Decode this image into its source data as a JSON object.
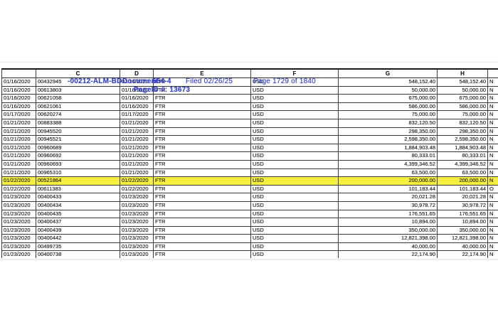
{
  "stamp": {
    "color": "#3240d4",
    "case_number_fragment": "-00212-ALM-BD",
    "document_label": "Document",
    "document_number": "554-4",
    "filed": "Filed 02/26/25",
    "page_info": "Page 1729 of 1840",
    "pageid": "PageID #: 13673"
  },
  "table": {
    "highlight_color": "#f7ef3f",
    "column_headers": [
      "",
      "C",
      "D",
      "E",
      "F",
      "G",
      "H",
      ""
    ],
    "rows": [
      {
        "date": "01/16/2020",
        "id": "00432945",
        "value_date": "01/16/2020",
        "type": "FTR",
        "currency": "USD",
        "amount": "548,152.40",
        "amount2": "548,152.40",
        "flag": "N",
        "highlighted": false
      },
      {
        "date": "01/16/2020",
        "id": "00613803",
        "value_date": "01/16/2020",
        "type": "FTR",
        "currency": "USD",
        "amount": "50,000.00",
        "amount2": "50,000.00",
        "flag": "N",
        "highlighted": false
      },
      {
        "date": "01/16/2020",
        "id": "00621058",
        "value_date": "01/16/2020",
        "type": "FTR",
        "currency": "USD",
        "amount": "675,000.00",
        "amount2": "675,000.00",
        "flag": "N",
        "highlighted": false
      },
      {
        "date": "01/16/2020",
        "id": "00621061",
        "value_date": "01/16/2020",
        "type": "FTR",
        "currency": "USD",
        "amount": "586,000.00",
        "amount2": "586,000.00",
        "flag": "N",
        "highlighted": false
      },
      {
        "date": "01/17/2020",
        "id": "00620274",
        "value_date": "01/17/2020",
        "type": "FTR",
        "currency": "USD",
        "amount": "75,000.00",
        "amount2": "75,000.00",
        "flag": "N",
        "highlighted": false
      },
      {
        "date": "01/21/2020",
        "id": "00883388",
        "value_date": "01/21/2020",
        "type": "FTR",
        "currency": "USD",
        "amount": "832,120.50",
        "amount2": "832,120.50",
        "flag": "N",
        "highlighted": false
      },
      {
        "date": "01/21/2020",
        "id": "00945520",
        "value_date": "01/21/2020",
        "type": "FTR",
        "currency": "USD",
        "amount": "298,350.00",
        "amount2": "298,350.00",
        "flag": "N",
        "highlighted": false
      },
      {
        "date": "01/21/2020",
        "id": "00945521",
        "value_date": "01/21/2020",
        "type": "FTR",
        "currency": "USD",
        "amount": "2,598,350.00",
        "amount2": "2,598,350.00",
        "flag": "N",
        "highlighted": false
      },
      {
        "date": "01/21/2020",
        "id": "00960689",
        "value_date": "01/21/2020",
        "type": "FTR",
        "currency": "USD",
        "amount": "1,884,903.48",
        "amount2": "1,884,903.48",
        "flag": "N",
        "highlighted": false
      },
      {
        "date": "01/21/2020",
        "id": "00960692",
        "value_date": "01/21/2020",
        "type": "FTR",
        "currency": "USD",
        "amount": "80,333.01",
        "amount2": "80,333.01",
        "flag": "N",
        "highlighted": false
      },
      {
        "date": "01/21/2020",
        "id": "00960693",
        "value_date": "01/21/2020",
        "type": "FTR",
        "currency": "USD",
        "amount": "4,399,346.52",
        "amount2": "4,399,346.52",
        "flag": "N",
        "highlighted": false
      },
      {
        "date": "01/21/2020",
        "id": "00965310",
        "value_date": "01/21/2020",
        "type": "FTR",
        "currency": "USD",
        "amount": "63,500.00",
        "amount2": "63,500.00",
        "flag": "N",
        "highlighted": false
      },
      {
        "date": "01/22/2020",
        "id": "00521864",
        "value_date": "01/22/2020",
        "type": "FTR",
        "currency": "USD",
        "amount": "200,000.00",
        "amount2": "200,000.00",
        "flag": "N",
        "highlighted": true
      },
      {
        "date": "01/22/2020",
        "id": "00611383",
        "value_date": "01/22/2020",
        "type": "FTR",
        "currency": "USD",
        "amount": "101,183.44",
        "amount2": "101,183.44",
        "flag": "O",
        "highlighted": false
      },
      {
        "date": "01/23/2020",
        "id": "00400433",
        "value_date": "01/23/2020",
        "type": "FTR",
        "currency": "USD",
        "amount": "20,021.28",
        "amount2": "20,021.28",
        "flag": "N",
        "highlighted": false
      },
      {
        "date": "01/23/2020",
        "id": "00400434",
        "value_date": "01/23/2020",
        "type": "FTR",
        "currency": "USD",
        "amount": "30,978.72",
        "amount2": "30,978.72",
        "flag": "N",
        "highlighted": false
      },
      {
        "date": "01/23/2020",
        "id": "00400435",
        "value_date": "01/23/2020",
        "type": "FTR",
        "currency": "USD",
        "amount": "176,551.65",
        "amount2": "176,551.65",
        "flag": "N",
        "highlighted": false
      },
      {
        "date": "01/23/2020",
        "id": "00400437",
        "value_date": "01/23/2020",
        "type": "FTR",
        "currency": "USD",
        "amount": "10,894.00",
        "amount2": "10,894.00",
        "flag": "N",
        "highlighted": false
      },
      {
        "date": "01/23/2020",
        "id": "00400439",
        "value_date": "01/23/2020",
        "type": "FTR",
        "currency": "USD",
        "amount": "350,000.00",
        "amount2": "350,000.00",
        "flag": "N",
        "highlighted": false
      },
      {
        "date": "01/23/2020",
        "id": "00400442",
        "value_date": "01/23/2020",
        "type": "FTR",
        "currency": "USD",
        "amount": "12,821,398.00",
        "amount2": "12,821,398.00",
        "flag": "N",
        "highlighted": false
      },
      {
        "date": "01/23/2020",
        "id": "00499735",
        "value_date": "01/23/2020",
        "type": "FTR",
        "currency": "USD",
        "amount": "40,000.00",
        "amount2": "40,000.00",
        "flag": "N",
        "highlighted": false
      },
      {
        "date": "01/23/2020",
        "id": "00400738",
        "value_date": "01/23/2020",
        "type": "FTR",
        "currency": "USD",
        "amount": "22,174.90",
        "amount2": "22,174.90",
        "flag": "N",
        "highlighted": false
      }
    ]
  }
}
